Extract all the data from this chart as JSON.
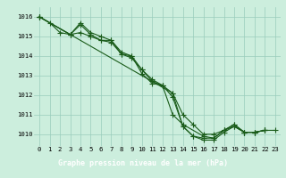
{
  "title": "Graphe pression niveau de la mer (hPa)",
  "bg_color": "#cceedd",
  "plot_bg_color": "#cceedd",
  "grid_color": "#99ccbb",
  "line_color": "#1a5c1a",
  "marker": "+",
  "markersize": 4,
  "linewidth": 0.8,
  "markeredgewidth": 0.8,
  "xlim": [
    -0.5,
    23.5
  ],
  "ylim": [
    1009.4,
    1016.5
  ],
  "yticks": [
    1010,
    1011,
    1012,
    1013,
    1014,
    1015,
    1016
  ],
  "xticks": [
    0,
    1,
    2,
    3,
    4,
    5,
    6,
    7,
    8,
    9,
    10,
    11,
    12,
    13,
    14,
    15,
    16,
    17,
    18,
    19,
    20,
    21,
    22,
    23
  ],
  "xlabel_bg": "#1a5c1a",
  "xlabel_color": "#ffffff",
  "title_fontsize": 6.0,
  "tick_fontsize": 5.2,
  "series": [
    [
      1016.0,
      1015.7,
      1015.2,
      1015.1,
      1015.6,
      1015.1,
      1014.8,
      1014.8,
      1014.1,
      1014.0,
      1013.1,
      1012.6,
      1012.5,
      1012.1,
      1010.4,
      1009.9,
      1009.7,
      1009.7,
      1010.1,
      1010.4,
      1010.1,
      1010.1,
      1010.2,
      null
    ],
    [
      1016.0,
      null,
      null,
      1015.1,
      1015.7,
      1015.2,
      1015.0,
      1014.8,
      1014.2,
      1014.0,
      1013.3,
      1012.8,
      1012.5,
      1011.0,
      1010.5,
      null,
      1009.9,
      1009.8,
      1010.2,
      1010.5,
      1010.1,
      1010.1,
      1010.2,
      null
    ],
    [
      1016.0,
      null,
      null,
      1015.1,
      1015.2,
      1015.0,
      1014.8,
      1014.7,
      1014.1,
      1013.9,
      1013.3,
      1012.7,
      1012.5,
      1011.9,
      1010.4,
      1009.9,
      1009.8,
      1009.8,
      1010.2,
      1010.4,
      1010.1,
      1010.1,
      1010.2,
      null
    ],
    [
      1016.0,
      null,
      null,
      null,
      null,
      null,
      null,
      null,
      null,
      null,
      null,
      null,
      null,
      1012.1,
      1011.0,
      1010.5,
      1010.0,
      1010.0,
      1010.2,
      1010.5,
      1010.1,
      1010.1,
      1010.2,
      1010.2
    ]
  ]
}
